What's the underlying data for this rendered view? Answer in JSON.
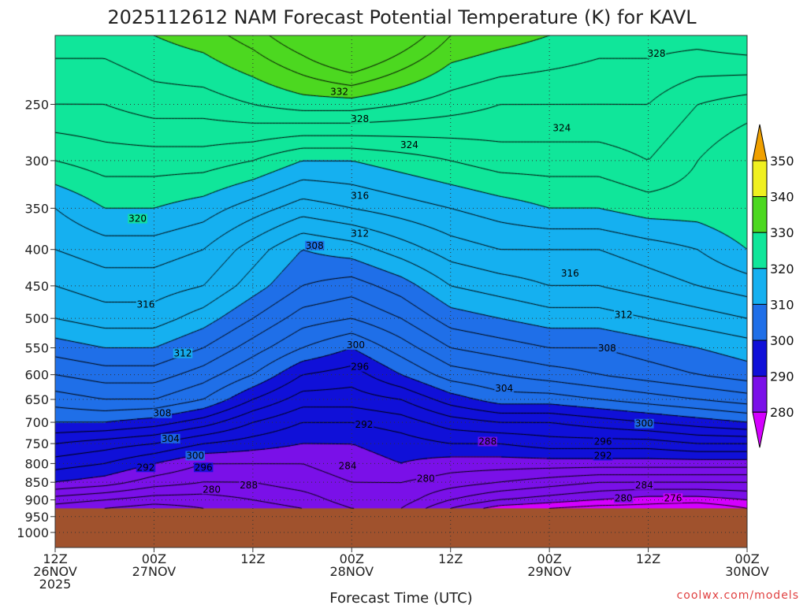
{
  "chart_data": {
    "type": "contour",
    "title": "2025112612 NAM Forecast Potential Temperature (K) for KAVL",
    "xlabel": "Forecast Time (UTC)",
    "credit": "coolwx.com/models",
    "yaxis": {
      "scale": "log-pressure",
      "ylim": [
        1050,
        200
      ],
      "ticks": [
        1000,
        950,
        900,
        850,
        800,
        750,
        700,
        650,
        600,
        550,
        500,
        450,
        400,
        350,
        300,
        250
      ]
    },
    "xaxis": {
      "xlim_hours": [
        0,
        84
      ],
      "ticks": [
        {
          "h": 0,
          "line1": "12Z",
          "line2": "26NOV",
          "line3": "2025"
        },
        {
          "h": 12,
          "line1": "00Z",
          "line2": "27NOV",
          "line3": ""
        },
        {
          "h": 24,
          "line1": "12Z",
          "line2": "",
          "line3": ""
        },
        {
          "h": 36,
          "line1": "00Z",
          "line2": "28NOV",
          "line3": ""
        },
        {
          "h": 48,
          "line1": "12Z",
          "line2": "",
          "line3": ""
        },
        {
          "h": 60,
          "line1": "00Z",
          "line2": "29NOV",
          "line3": ""
        },
        {
          "h": 72,
          "line1": "12Z",
          "line2": "",
          "line3": ""
        },
        {
          "h": 84,
          "line1": "00Z",
          "line2": "30NOV",
          "line3": ""
        }
      ]
    },
    "colorbar": {
      "levels": [
        280,
        290,
        300,
        310,
        320,
        330,
        340,
        350
      ],
      "colors": [
        "#d400ff",
        "#7a10e8",
        "#1010d8",
        "#1f6fe8",
        "#15b0f0",
        "#10e69a",
        "#4cd820",
        "#f0f020",
        "#f0a000"
      ]
    },
    "surface": {
      "pressure_hpa": 925,
      "color": "#a0522d"
    },
    "contour_interval": 2,
    "contour_range": [
      274,
      334
    ],
    "potential_temperature_field": {
      "hours": [
        0,
        6,
        12,
        18,
        24,
        30,
        36,
        42,
        48,
        54,
        60,
        66,
        72,
        78,
        84
      ],
      "pressure_levels": [
        925,
        900,
        850,
        800,
        750,
        700,
        650,
        600,
        550,
        500,
        450,
        400,
        350,
        300,
        250,
        200
      ],
      "theta": [
        [
          283,
          282,
          281,
          282,
          283,
          284,
          286,
          286,
          282,
          279,
          278,
          277,
          277,
          276,
          278
        ],
        [
          285,
          284,
          283,
          283,
          284,
          285,
          287,
          287,
          284,
          282,
          281,
          280,
          279,
          279,
          280
        ],
        [
          290,
          289,
          287,
          286,
          286,
          287,
          288,
          288,
          287,
          286,
          285,
          284,
          284,
          284,
          284
        ],
        [
          293,
          292,
          290,
          288,
          288,
          288,
          289,
          290,
          289,
          289,
          289,
          289,
          289,
          289,
          289
        ],
        [
          296,
          295,
          294,
          292,
          291,
          290,
          290,
          291,
          292,
          292,
          293,
          293,
          293,
          294,
          294
        ],
        [
          300,
          300,
          299,
          297,
          294,
          292,
          292,
          293,
          295,
          296,
          296,
          297,
          298,
          299,
          300
        ],
        [
          303,
          304,
          304,
          302,
          298,
          295,
          295,
          296,
          299,
          301,
          301,
          302,
          303,
          304,
          305
        ],
        [
          306,
          307,
          307,
          305,
          302,
          298,
          297,
          300,
          303,
          304,
          305,
          306,
          307,
          308,
          309
        ],
        [
          309,
          310,
          310,
          308,
          305,
          302,
          300,
          303,
          306,
          307,
          308,
          308,
          309,
          310,
          311
        ],
        [
          312,
          313,
          313,
          311,
          308,
          305,
          304,
          306,
          309,
          310,
          311,
          311,
          312,
          313,
          314
        ],
        [
          314,
          315,
          315,
          314,
          311,
          308,
          307,
          309,
          312,
          313,
          314,
          314,
          315,
          316,
          317
        ],
        [
          316,
          317,
          317,
          316,
          313,
          310,
          311,
          313,
          315,
          316,
          316,
          316,
          317,
          318,
          320
        ],
        [
          318,
          320,
          320,
          319,
          317,
          315,
          316,
          317,
          318,
          319,
          320,
          320,
          321,
          321,
          322
        ],
        [
          322,
          323,
          323,
          323,
          322,
          320,
          320,
          321,
          322,
          323,
          323,
          323,
          324,
          322,
          320
        ],
        [
          326,
          326,
          327,
          327,
          328,
          329,
          329,
          328,
          327,
          326,
          326,
          326,
          326,
          324,
          323
        ],
        [
          329,
          329,
          330,
          331,
          333,
          336,
          340,
          336,
          332,
          331,
          330,
          329,
          329,
          329,
          330
        ]
      ]
    },
    "contour_labels": [
      {
        "text": "328",
        "h": 73,
        "p": 212
      },
      {
        "text": "332",
        "h": 34.5,
        "p": 240
      },
      {
        "text": "328",
        "h": 37,
        "p": 262
      },
      {
        "text": "324",
        "h": 43,
        "p": 285
      },
      {
        "text": "324",
        "h": 61.5,
        "p": 270
      },
      {
        "text": "316",
        "h": 37,
        "p": 336
      },
      {
        "text": "312",
        "h": 37,
        "p": 380
      },
      {
        "text": "308",
        "h": 31.5,
        "p": 395
      },
      {
        "text": "320",
        "h": 10,
        "p": 362
      },
      {
        "text": "316",
        "h": 11,
        "p": 478
      },
      {
        "text": "316",
        "h": 62.5,
        "p": 432
      },
      {
        "text": "312",
        "h": 15.5,
        "p": 560
      },
      {
        "text": "312",
        "h": 69,
        "p": 494
      },
      {
        "text": "308",
        "h": 13,
        "p": 680
      },
      {
        "text": "308",
        "h": 67,
        "p": 551
      },
      {
        "text": "300",
        "h": 36.5,
        "p": 545
      },
      {
        "text": "296",
        "h": 37,
        "p": 585
      },
      {
        "text": "304",
        "h": 54.5,
        "p": 627
      },
      {
        "text": "292",
        "h": 37.5,
        "p": 705
      },
      {
        "text": "304",
        "h": 14,
        "p": 738
      },
      {
        "text": "300",
        "h": 17,
        "p": 780
      },
      {
        "text": "300",
        "h": 71.5,
        "p": 703
      },
      {
        "text": "296",
        "h": 66.5,
        "p": 745
      },
      {
        "text": "292",
        "h": 66.5,
        "p": 780
      },
      {
        "text": "288",
        "h": 52.5,
        "p": 745
      },
      {
        "text": "292",
        "h": 11,
        "p": 810
      },
      {
        "text": "296",
        "h": 18,
        "p": 810
      },
      {
        "text": "284",
        "h": 35.5,
        "p": 806
      },
      {
        "text": "288",
        "h": 23.5,
        "p": 858
      },
      {
        "text": "280",
        "h": 19,
        "p": 870
      },
      {
        "text": "280",
        "h": 45,
        "p": 840
      },
      {
        "text": "284",
        "h": 71.5,
        "p": 858
      },
      {
        "text": "280",
        "h": 69,
        "p": 895
      },
      {
        "text": "276",
        "h": 75,
        "p": 895
      }
    ]
  }
}
